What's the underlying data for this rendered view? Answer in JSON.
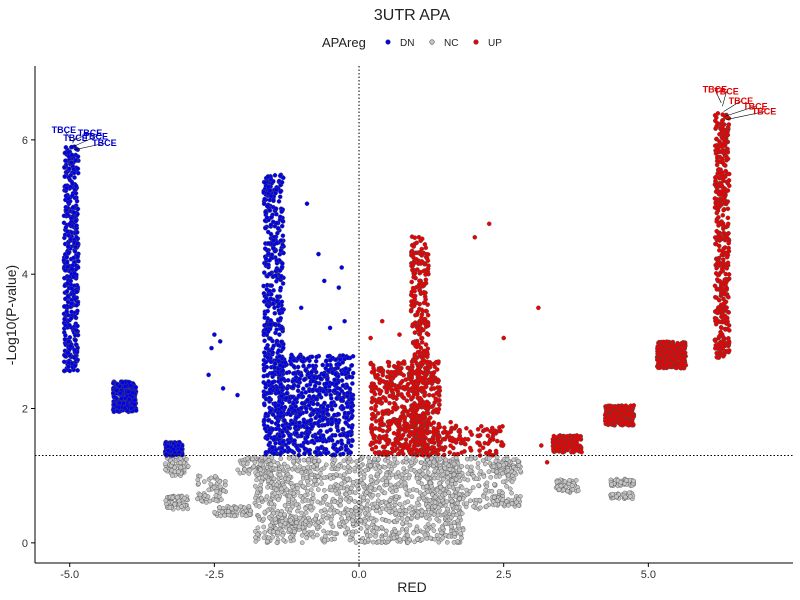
{
  "chart_data": {
    "type": "scatter",
    "title": "3UTR APA",
    "xlabel": "RED",
    "ylabel": "-Log10(P-value)",
    "xlim": [
      -5.6,
      7.5
    ],
    "ylim": [
      -0.3,
      7.1
    ],
    "xticks": [
      -5.0,
      -2.5,
      0.0,
      2.5,
      5.0
    ],
    "xtick_labels": [
      "-5.0",
      "-2.5",
      "0.0",
      "2.5",
      "5.0"
    ],
    "yticks": [
      0,
      2,
      4,
      6
    ],
    "ytick_labels": [
      "0",
      "2",
      "4",
      "6"
    ],
    "grid": false,
    "legend": {
      "title": "APAreg",
      "placement": "top",
      "entries": [
        {
          "label": "DN",
          "color": "#0000ee"
        },
        {
          "label": "NC",
          "color": "#c4c4c4"
        },
        {
          "label": "UP",
          "color": "#ee0000"
        }
      ]
    },
    "reference_lines": {
      "hline_y": 1.3,
      "vline_x": 0.0,
      "style": "dotted"
    },
    "series": [
      {
        "name": "DN",
        "color": "#0000ee",
        "clusters": [
          {
            "x_range": [
              -5.1,
              -4.85
            ],
            "y_range": [
              2.55,
              5.9
            ],
            "n": 420
          },
          {
            "x_range": [
              -4.25,
              -3.85
            ],
            "y_range": [
              1.95,
              2.4
            ],
            "n": 260
          },
          {
            "x_range": [
              -3.35,
              -3.05
            ],
            "y_range": [
              1.3,
              1.5
            ],
            "n": 120
          },
          {
            "x_range": [
              -1.65,
              -1.3
            ],
            "y_range": [
              1.3,
              5.5
            ],
            "n": 520
          },
          {
            "x_range": [
              -1.4,
              -0.1
            ],
            "y_range": [
              1.3,
              2.8
            ],
            "n": 700
          }
        ],
        "points": [
          [
            -2.5,
            3.1
          ],
          [
            -2.4,
            3.0
          ],
          [
            -2.55,
            2.9
          ],
          [
            -2.6,
            2.5
          ],
          [
            -2.35,
            2.3
          ],
          [
            -2.1,
            2.2
          ],
          [
            -0.9,
            5.05
          ],
          [
            -0.7,
            4.3
          ],
          [
            -0.6,
            3.9
          ],
          [
            -0.3,
            4.1
          ],
          [
            -0.35,
            3.8
          ],
          [
            -1.0,
            3.5
          ],
          [
            -0.5,
            3.2
          ],
          [
            -0.25,
            3.3
          ]
        ]
      },
      {
        "name": "NC",
        "color": "#c4c4c4",
        "clusters": [
          {
            "x_range": [
              -3.35,
              -2.95
            ],
            "y_range": [
              1.0,
              1.28
            ],
            "n": 70
          },
          {
            "x_range": [
              -3.35,
              -2.95
            ],
            "y_range": [
              0.5,
              0.7
            ],
            "n": 60
          },
          {
            "x_range": [
              -2.8,
              -2.3
            ],
            "y_range": [
              0.6,
              1.0
            ],
            "n": 60
          },
          {
            "x_range": [
              -2.5,
              -1.85
            ],
            "y_range": [
              0.4,
              0.55
            ],
            "n": 60
          },
          {
            "x_range": [
              -2.1,
              -1.5
            ],
            "y_range": [
              1.0,
              1.28
            ],
            "n": 60
          },
          {
            "x_range": [
              -1.5,
              -0.9
            ],
            "y_range": [
              0.2,
              0.4
            ],
            "n": 60
          },
          {
            "x_range": [
              -1.8,
              1.8
            ],
            "y_range": [
              0.0,
              1.28
            ],
            "n": 1200
          },
          {
            "x_range": [
              1.1,
              2.7
            ],
            "y_range": [
              0.5,
              1.28
            ],
            "n": 220
          },
          {
            "x_range": [
              2.3,
              2.8
            ],
            "y_range": [
              1.0,
              1.25
            ],
            "n": 50
          },
          {
            "x_range": [
              2.3,
              2.8
            ],
            "y_range": [
              0.55,
              0.7
            ],
            "n": 40
          },
          {
            "x_range": [
              3.4,
              3.8
            ],
            "y_range": [
              0.75,
              0.95
            ],
            "n": 50
          },
          {
            "x_range": [
              4.35,
              4.75
            ],
            "y_range": [
              0.85,
              0.95
            ],
            "n": 40
          },
          {
            "x_range": [
              4.35,
              4.75
            ],
            "y_range": [
              0.65,
              0.75
            ],
            "n": 40
          }
        ],
        "points": []
      },
      {
        "name": "UP",
        "color": "#ee0000",
        "clusters": [
          {
            "x_range": [
              0.2,
              1.4
            ],
            "y_range": [
              1.3,
              2.7
            ],
            "n": 520
          },
          {
            "x_range": [
              0.9,
              1.2
            ],
            "y_range": [
              1.3,
              4.6
            ],
            "n": 320
          },
          {
            "x_range": [
              0.8,
              2.5
            ],
            "y_range": [
              1.3,
              1.8
            ],
            "n": 160
          },
          {
            "x_range": [
              3.35,
              3.85
            ],
            "y_range": [
              1.35,
              1.6
            ],
            "n": 160
          },
          {
            "x_range": [
              4.25,
              4.75
            ],
            "y_range": [
              1.75,
              2.05
            ],
            "n": 220
          },
          {
            "x_range": [
              5.15,
              5.65
            ],
            "y_range": [
              2.6,
              3.0
            ],
            "n": 260
          },
          {
            "x_range": [
              6.15,
              6.4
            ],
            "y_range": [
              2.75,
              6.4
            ],
            "n": 420
          }
        ],
        "points": [
          [
            2.0,
            4.55
          ],
          [
            2.25,
            4.75
          ],
          [
            3.1,
            3.5
          ],
          [
            0.9,
            3.45
          ],
          [
            0.7,
            3.1
          ],
          [
            0.4,
            3.3
          ],
          [
            0.2,
            3.05
          ],
          [
            2.5,
            3.05
          ],
          [
            3.15,
            1.45
          ],
          [
            3.25,
            1.2
          ]
        ]
      }
    ],
    "annotations": [
      {
        "text": "TBCE",
        "series": "DN",
        "point": [
          -4.98,
          6.0
        ],
        "label_pos": [
          -5.1,
          6.15
        ]
      },
      {
        "text": "TBCE",
        "series": "DN",
        "point": [
          -4.96,
          5.98
        ],
        "label_pos": [
          -4.65,
          6.1
        ]
      },
      {
        "text": "TBCE",
        "series": "DN",
        "point": [
          -4.95,
          5.95
        ],
        "label_pos": [
          -4.9,
          6.03
        ]
      },
      {
        "text": "TBCE",
        "series": "DN",
        "point": [
          -4.94,
          5.9
        ],
        "label_pos": [
          -4.55,
          6.05
        ]
      },
      {
        "text": "TBCE",
        "series": "DN",
        "point": [
          -4.93,
          5.85
        ],
        "label_pos": [
          -4.4,
          5.95
        ]
      },
      {
        "text": "TBCE",
        "series": "UP",
        "point": [
          6.26,
          6.55
        ],
        "label_pos": [
          6.15,
          6.75
        ]
      },
      {
        "text": "TBCE",
        "series": "UP",
        "point": [
          6.28,
          6.5
        ],
        "label_pos": [
          6.35,
          6.72
        ]
      },
      {
        "text": "TBCE",
        "series": "UP",
        "point": [
          6.3,
          6.42
        ],
        "label_pos": [
          6.6,
          6.58
        ]
      },
      {
        "text": "TBCE",
        "series": "UP",
        "point": [
          6.32,
          6.35
        ],
        "label_pos": [
          6.85,
          6.5
        ]
      },
      {
        "text": "TBCE",
        "series": "UP",
        "point": [
          6.34,
          6.3
        ],
        "label_pos": [
          7.0,
          6.42
        ]
      }
    ]
  }
}
